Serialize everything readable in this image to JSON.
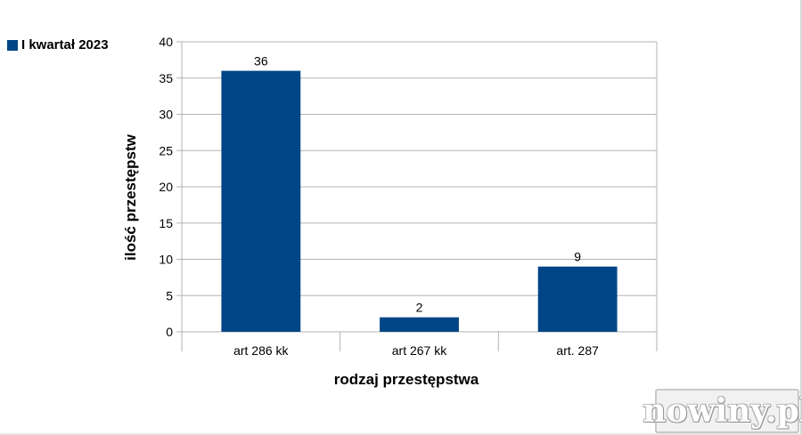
{
  "chart_data": {
    "type": "bar",
    "categories": [
      "art 286 kk",
      "art 267 kk",
      "art. 287"
    ],
    "series": [
      {
        "name": "I kwartał 2023",
        "values": [
          36,
          2,
          9
        ],
        "color": "#004586"
      }
    ],
    "xlabel": "rodzaj przestępstwa",
    "ylabel": "ilość przestępstw",
    "ylim": [
      0,
      40
    ],
    "yticks": [
      0,
      5,
      10,
      15,
      20,
      25,
      30,
      35,
      40
    ],
    "data_labels": true,
    "grid": true,
    "legend_position": "top-left"
  },
  "watermark": {
    "text": "nowiny.pl"
  },
  "colors": {
    "bar": "#004586",
    "grid": "#b3b3b3"
  }
}
